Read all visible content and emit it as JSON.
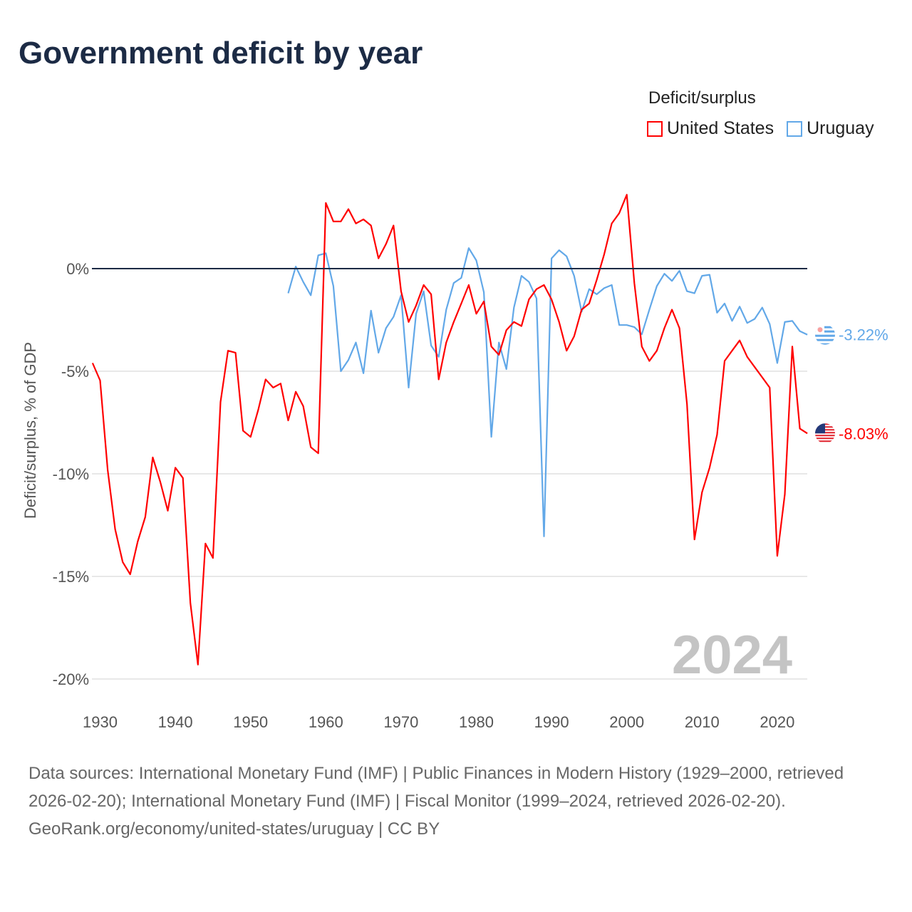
{
  "chart_data": {
    "type": "line",
    "title": "Government deficit by year",
    "ylabel": "Deficit/surplus, % of GDP",
    "xlabel": "",
    "xlim": [
      1929,
      2024
    ],
    "ylim": [
      -21,
      4
    ],
    "yticks": [
      0,
      -5,
      -10,
      -15,
      -20
    ],
    "ytick_labels": [
      "0%",
      "-5%",
      "-10%",
      "-15%",
      "-20%"
    ],
    "xticks": [
      1930,
      1940,
      1950,
      1960,
      1970,
      1980,
      1990,
      2000,
      2010,
      2020
    ],
    "xtick_labels": [
      "1930",
      "1940",
      "1950",
      "1960",
      "1970",
      "1980",
      "1990",
      "2000",
      "2010",
      "2020"
    ],
    "grid": true,
    "legend_title": "Deficit/surplus",
    "legend_position": "top-right",
    "year_watermark": "2024",
    "series": [
      {
        "name": "United States",
        "color": "#ff0000",
        "start_year": 1929,
        "end_label": "-8.03%",
        "values": [
          -4.6,
          -5.45,
          -9.8,
          -12.7,
          -14.3,
          -14.9,
          -13.3,
          -12.1,
          -9.2,
          -10.4,
          -11.8,
          -9.7,
          -10.2,
          -16.3,
          -19.3,
          -13.4,
          -14.1,
          -6.5,
          -4.0,
          -4.1,
          -7.9,
          -8.2,
          -6.9,
          -5.4,
          -5.8,
          -5.6,
          -7.4,
          -6.0,
          -6.7,
          -8.7,
          -9.0,
          3.2,
          2.3,
          2.3,
          2.9,
          2.2,
          2.4,
          2.1,
          0.5,
          1.2,
          2.1,
          -1.1,
          -2.6,
          -1.8,
          -0.8,
          -1.25,
          -5.4,
          -3.6,
          -2.6,
          -1.7,
          -0.8,
          -2.2,
          -1.6,
          -3.8,
          -4.2,
          -3.0,
          -2.6,
          -2.8,
          -1.5,
          -1.0,
          -0.8,
          -1.5,
          -2.6,
          -4.0,
          -3.3,
          -2.0,
          -1.7,
          -0.55,
          0.7,
          2.2,
          2.7,
          3.6,
          -0.7,
          -3.8,
          -4.5,
          -4.0,
          -2.9,
          -2.0,
          -2.9,
          -6.6,
          -13.2,
          -10.9,
          -9.7,
          -8.1,
          -4.5,
          -4.0,
          -3.5,
          -4.3,
          -4.8,
          -5.3,
          -5.8,
          -14.0,
          -11.0,
          -3.8,
          -7.8,
          -8.03
        ]
      },
      {
        "name": "Uruguay",
        "color": "#62a8e8",
        "start_year": 1955,
        "end_label": "-3.22%",
        "values": [
          -1.2,
          0.1,
          -0.65,
          -1.3,
          0.65,
          0.75,
          -0.85,
          -5.0,
          -4.45,
          -3.6,
          -5.1,
          -2.05,
          -4.1,
          -2.9,
          -2.35,
          -1.3,
          -5.8,
          -2.2,
          -1.1,
          -3.75,
          -4.3,
          -2.0,
          -0.7,
          -0.45,
          1.0,
          0.4,
          -1.15,
          -8.2,
          -3.6,
          -4.9,
          -1.9,
          -0.35,
          -0.65,
          -1.45,
          -13.05,
          0.5,
          0.9,
          0.6,
          -0.35,
          -2.1,
          -1.0,
          -1.25,
          -0.95,
          -0.8,
          -2.75,
          -2.75,
          -2.85,
          -3.2,
          -2.0,
          -0.85,
          -0.25,
          -0.6,
          -0.1,
          -1.1,
          -1.2,
          -0.35,
          -0.3,
          -2.15,
          -1.7,
          -2.55,
          -1.85,
          -2.65,
          -2.45,
          -1.9,
          -2.7,
          -4.6,
          -2.6,
          -2.55,
          -3.05,
          -3.22
        ]
      }
    ]
  },
  "footer": {
    "sources": "Data sources: International Monetary Fund (IMF) | Public Finances in Modern History (1929–2000, retrieved 2026-02-20); International Monetary Fund (IMF) | Fiscal Monitor (1999–2024, retrieved 2026-02-20).",
    "credit": "GeoRank.org/economy/united-states/uruguay | CC BY"
  }
}
